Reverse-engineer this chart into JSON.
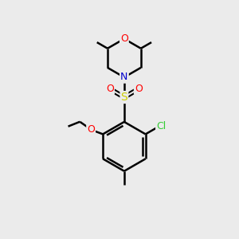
{
  "bg_color": "#ebebeb",
  "bond_color": "#000000",
  "atom_colors": {
    "O": "#ff0000",
    "N": "#0000cc",
    "S": "#cccc00",
    "Cl": "#33cc33",
    "C": "#000000"
  },
  "figsize": [
    3.0,
    3.0
  ],
  "dpi": 100
}
